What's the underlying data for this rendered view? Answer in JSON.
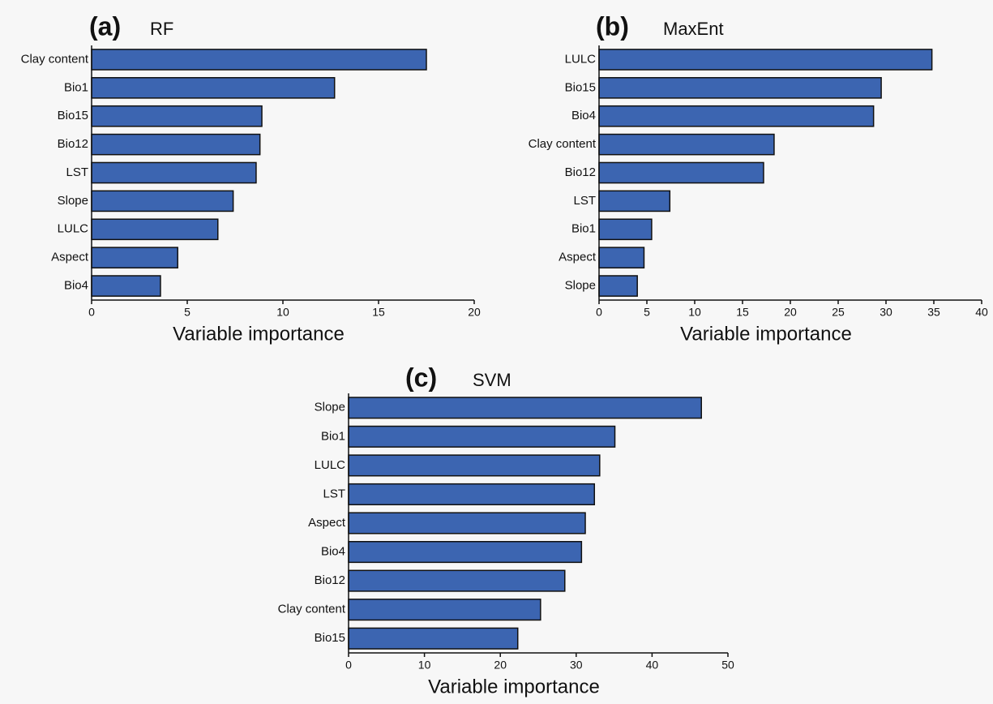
{
  "chart_data": [
    {
      "type": "bar",
      "orientation": "horizontal",
      "panel": "(a)",
      "title": "RF",
      "xlabel": "Variable importance",
      "categories": [
        "Clay content",
        "Bio1",
        "Bio15",
        "Bio12",
        "LST",
        "Slope",
        "LULC",
        "Aspect",
        "Bio4"
      ],
      "values": [
        17.5,
        12.7,
        8.9,
        8.8,
        8.6,
        7.4,
        6.6,
        4.5,
        3.6
      ],
      "color": "#3c65b1",
      "xlim": [
        0,
        20
      ],
      "xticks": [
        0,
        5,
        10,
        15,
        20
      ]
    },
    {
      "type": "bar",
      "orientation": "horizontal",
      "panel": "(b)",
      "title": "MaxEnt",
      "xlabel": "Variable importance",
      "categories": [
        "LULC",
        "Bio15",
        "Bio4",
        "Clay content",
        "Bio12",
        "LST",
        "Bio1",
        "Aspect",
        "Slope"
      ],
      "values": [
        34.8,
        29.5,
        28.7,
        18.3,
        17.2,
        7.4,
        5.5,
        4.7,
        4.0
      ],
      "color": "#3c65b1",
      "xlim": [
        0,
        40
      ],
      "xticks": [
        0,
        5,
        10,
        15,
        20,
        25,
        30,
        35,
        40
      ]
    },
    {
      "type": "bar",
      "orientation": "horizontal",
      "panel": "(c)",
      "title": "SVM",
      "xlabel": "Variable importance",
      "categories": [
        "Slope",
        "Bio1",
        "LULC",
        "LST",
        "Aspect",
        "Bio4",
        "Bio12",
        "Clay content",
        "Bio15"
      ],
      "values": [
        46.5,
        35.1,
        33.1,
        32.4,
        31.2,
        30.7,
        28.5,
        25.3,
        22.3
      ],
      "color": "#3c65b1",
      "xlim": [
        0,
        50
      ],
      "xticks": [
        0,
        10,
        20,
        30,
        40,
        50
      ]
    }
  ]
}
